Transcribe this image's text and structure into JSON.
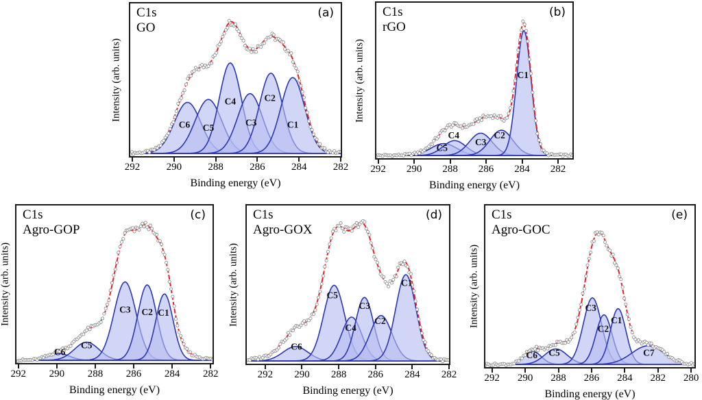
{
  "colors": {
    "fit_line": "#ee1c24",
    "component_line": "#2a35b5",
    "component_fill": "#b7bdf1",
    "data_point_stroke": "#8f8f8f",
    "data_point_fill": "#ffffff",
    "frame": "#1a1a1a",
    "text": "#000000"
  },
  "chart_data": [
    {
      "type": "area",
      "panel_label": "(a)",
      "spectrum_label": "C1s",
      "sample": "GO",
      "xlabel": "Binding energy (eV)",
      "ylabel": "Intensity (arb. units)",
      "x_axis_reversed": true,
      "x_range": [
        292.1,
        282.0
      ],
      "x_ticks": [
        292,
        290,
        288,
        286,
        284,
        282
      ],
      "grid": false,
      "noise": 0.013,
      "background_component": {
        "center": 286.8,
        "height": 0.07,
        "fwhm": 5.0
      },
      "peaks": [
        {
          "label": "C6",
          "center": 289.35,
          "height": 0.35,
          "fwhm": 1.5,
          "label_x": 289.5,
          "label_y": 0.175
        },
        {
          "label": "C5",
          "center": 288.35,
          "height": 0.37,
          "fwhm": 1.5,
          "label_x": 288.35,
          "label_y": 0.155
        },
        {
          "label": "C4",
          "center": 287.3,
          "height": 0.62,
          "fwhm": 1.25,
          "label_x": 287.3,
          "label_y": 0.335
        },
        {
          "label": "C3",
          "center": 286.35,
          "height": 0.41,
          "fwhm": 1.4,
          "label_x": 286.3,
          "label_y": 0.19
        },
        {
          "label": "C2",
          "center": 285.35,
          "height": 0.55,
          "fwhm": 1.3,
          "label_x": 285.4,
          "label_y": 0.36
        },
        {
          "label": "C1",
          "center": 284.3,
          "height": 0.52,
          "fwhm": 1.35,
          "label_x": 284.3,
          "label_y": 0.175
        }
      ]
    },
    {
      "type": "area",
      "panel_label": "(b)",
      "spectrum_label": "C1s",
      "sample": "rGO",
      "xlabel": "Binding energy (eV)",
      "ylabel": "Intensity (arb. units)",
      "x_axis_reversed": true,
      "x_range": [
        292.1,
        281.2
      ],
      "x_ticks": [
        292,
        290,
        288,
        286,
        284,
        282
      ],
      "grid": false,
      "noise": 0.012,
      "background_component": {
        "center": 286.3,
        "height": 0.055,
        "fwhm": 4.0
      },
      "peaks": [
        {
          "label": "C5",
          "center": 288.35,
          "height": 0.08,
          "fwhm": 1.7,
          "label_x": 288.45,
          "label_y": 0.03
        },
        {
          "label": "C4",
          "center": 287.75,
          "height": 0.1,
          "fwhm": 1.5,
          "label_x": 287.8,
          "label_y": 0.115
        },
        {
          "label": "C3",
          "center": 286.3,
          "height": 0.15,
          "fwhm": 1.5,
          "label_x": 286.3,
          "label_y": 0.07
        },
        {
          "label": "C2",
          "center": 285.15,
          "height": 0.17,
          "fwhm": 1.5,
          "label_x": 285.25,
          "label_y": 0.115
        },
        {
          "label": "C1",
          "center": 283.9,
          "height": 0.84,
          "fwhm": 0.95,
          "label_x": 283.95,
          "label_y": 0.52
        }
      ]
    },
    {
      "type": "area",
      "panel_label": "(c)",
      "spectrum_label": "C1s",
      "sample": "Agro-GOP",
      "xlabel": "Binding energy (eV)",
      "ylabel": "Intensity (arb. units)",
      "x_axis_reversed": true,
      "x_range": [
        292.1,
        281.9
      ],
      "x_ticks": [
        292,
        290,
        288,
        286,
        284,
        282
      ],
      "grid": false,
      "noise": 0.011,
      "background_component": {
        "center": 286.0,
        "height": 0.3,
        "fwhm": 3.5
      },
      "peaks": [
        {
          "label": "C6",
          "center": 289.9,
          "height": 0.045,
          "fwhm": 1.3,
          "label_x": 289.85,
          "label_y": 0.035
        },
        {
          "label": "C5",
          "center": 288.45,
          "height": 0.12,
          "fwhm": 1.5,
          "label_x": 288.45,
          "label_y": 0.08
        },
        {
          "label": "C3",
          "center": 286.45,
          "height": 0.52,
          "fwhm": 1.35,
          "label_x": 286.45,
          "label_y": 0.315
        },
        {
          "label": "C2",
          "center": 285.3,
          "height": 0.5,
          "fwhm": 1.15,
          "label_x": 285.3,
          "label_y": 0.3
        },
        {
          "label": "C1",
          "center": 284.4,
          "height": 0.44,
          "fwhm": 1.05,
          "label_x": 284.45,
          "label_y": 0.295
        }
      ]
    },
    {
      "type": "area",
      "panel_label": "(d)",
      "spectrum_label": "C1s",
      "sample": "Agro-GOX",
      "xlabel": "Binding energy (eV)",
      "ylabel": "Intensity (arb. units)",
      "x_axis_reversed": true,
      "x_range": [
        293.0,
        282.0
      ],
      "x_ticks": [
        292,
        290,
        288,
        286,
        284,
        282
      ],
      "grid": false,
      "noise": 0.013,
      "background_component": {
        "center": 287.8,
        "height": 0.3,
        "fwhm": 4.5
      },
      "peaks": [
        {
          "label": "C6",
          "center": 290.35,
          "height": 0.095,
          "fwhm": 1.6,
          "label_x": 290.3,
          "label_y": 0.075
        },
        {
          "label": "C5",
          "center": 288.25,
          "height": 0.5,
          "fwhm": 1.35,
          "label_x": 288.35,
          "label_y": 0.415
        },
        {
          "label": "C4",
          "center": 287.3,
          "height": 0.29,
          "fwhm": 1.3,
          "label_x": 287.35,
          "label_y": 0.2
        },
        {
          "label": "C3",
          "center": 286.6,
          "height": 0.42,
          "fwhm": 1.15,
          "label_x": 286.6,
          "label_y": 0.345
        },
        {
          "label": "C2",
          "center": 285.7,
          "height": 0.3,
          "fwhm": 1.4,
          "label_x": 285.75,
          "label_y": 0.245
        },
        {
          "label": "C1",
          "center": 284.35,
          "height": 0.57,
          "fwhm": 1.3,
          "label_x": 284.3,
          "label_y": 0.495
        }
      ]
    },
    {
      "type": "area",
      "panel_label": "(e)",
      "spectrum_label": "C1s",
      "sample": "Agro-GOC",
      "xlabel": "Binding energy (eV)",
      "ylabel": "Intensity (arb. units)",
      "x_axis_reversed": true,
      "x_range": [
        292.4,
        279.8
      ],
      "x_ticks": [
        292,
        290,
        288,
        286,
        284,
        282,
        280
      ],
      "grid": false,
      "noise": 0.012,
      "background_component": {
        "center": 285.6,
        "height": 0.24,
        "fwhm": 3.0
      },
      "peaks": [
        {
          "label": "C6",
          "center": 289.55,
          "height": 0.085,
          "fwhm": 1.2,
          "label_x": 289.6,
          "label_y": 0.04
        },
        {
          "label": "C5",
          "center": 288.15,
          "height": 0.1,
          "fwhm": 1.6,
          "label_x": 288.25,
          "label_y": 0.055
        },
        {
          "label": "C3",
          "center": 285.95,
          "height": 0.43,
          "fwhm": 1.3,
          "label_x": 286.05,
          "label_y": 0.345
        },
        {
          "label": "C2",
          "center": 285.25,
          "height": 0.32,
          "fwhm": 1.15,
          "label_x": 285.3,
          "label_y": 0.21
        },
        {
          "label": "C1",
          "center": 284.4,
          "height": 0.36,
          "fwhm": 1.1,
          "label_x": 284.5,
          "label_y": 0.265
        },
        {
          "label": "C7",
          "center": 282.6,
          "height": 0.12,
          "fwhm": 2.3,
          "label_x": 282.55,
          "label_y": 0.055
        }
      ]
    }
  ]
}
